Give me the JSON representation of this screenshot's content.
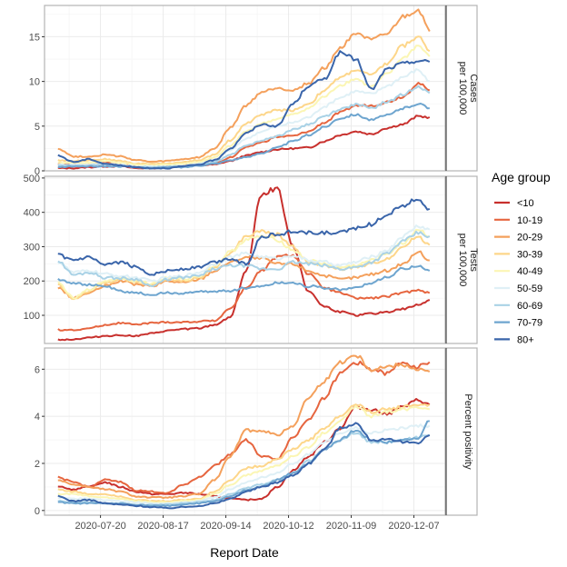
{
  "chart_data": {
    "type": "line",
    "xlabel": "Report Date",
    "x_ticks": [
      "2020-07-20",
      "2020-08-17",
      "2020-09-14",
      "2020-10-12",
      "2020-11-09",
      "2020-12-07"
    ],
    "x_range": [
      "2020-06-25",
      "2020-12-21"
    ],
    "x_dates": [
      "2020-07-01",
      "2020-07-08",
      "2020-07-15",
      "2020-07-22",
      "2020-07-29",
      "2020-08-05",
      "2020-08-12",
      "2020-08-19",
      "2020-08-26",
      "2020-09-02",
      "2020-09-09",
      "2020-09-16",
      "2020-09-23",
      "2020-09-30",
      "2020-10-07",
      "2020-10-14",
      "2020-10-21",
      "2020-10-28",
      "2020-11-04",
      "2020-11-11",
      "2020-11-18",
      "2020-11-25",
      "2020-12-02",
      "2020-12-09",
      "2020-12-14"
    ],
    "grid": true,
    "legend": {
      "title": "Age group",
      "position": "right",
      "entries": [
        "<10",
        "10-19",
        "20-29",
        "30-39",
        "40-49",
        "50-59",
        "60-69",
        "70-79",
        "80+"
      ]
    },
    "colors": {
      "<10": "#c8302d",
      "10-19": "#e6653f",
      "20-29": "#f4a05c",
      "30-39": "#fdd68a",
      "40-49": "#fbf6b4",
      "50-59": "#dff0f6",
      "60-69": "#a9d2e6",
      "70-79": "#6ea5cf",
      "80+": "#3a65aa"
    },
    "panels": [
      {
        "strip": [
          "Cases",
          "per 100,000"
        ],
        "ylim": [
          0,
          18.5
        ],
        "y_ticks": [
          0,
          5,
          10,
          15
        ],
        "series": [
          {
            "name": "<10",
            "values": [
              0.3,
              0.3,
              0.4,
              0.5,
              0.5,
              0.3,
              0.3,
              0.4,
              0.5,
              0.6,
              0.7,
              1.1,
              1.7,
              2.1,
              2.4,
              2.5,
              2.6,
              3.3,
              4.0,
              4.4,
              4.1,
              4.8,
              5.2,
              6.1,
              6.0
            ]
          },
          {
            "name": "10-19",
            "values": [
              0.8,
              0.8,
              0.7,
              0.9,
              0.8,
              0.5,
              0.4,
              0.5,
              0.6,
              0.7,
              0.8,
              1.5,
              2.6,
              3.2,
              3.8,
              3.9,
              4.4,
              5.4,
              6.5,
              7.3,
              7.3,
              7.7,
              8.3,
              9.8,
              9.0
            ]
          },
          {
            "name": "20-29",
            "values": [
              2.5,
              1.6,
              1.6,
              1.8,
              1.6,
              1.2,
              1.0,
              1.1,
              1.3,
              1.5,
              2.5,
              4.8,
              7.3,
              8.8,
              9.3,
              9.0,
              9.8,
              11.5,
              13.7,
              15.5,
              14.6,
              15.3,
              17.2,
              18.0,
              15.6
            ]
          },
          {
            "name": "30-39",
            "values": [
              1.2,
              1.1,
              1.2,
              1.3,
              1.1,
              0.8,
              0.8,
              0.8,
              1.0,
              1.2,
              1.8,
              3.4,
              5.3,
              6.3,
              6.8,
              6.8,
              7.5,
              9.0,
              10.4,
              11.3,
              10.7,
              12.0,
              14.0,
              15.0,
              13.4
            ]
          },
          {
            "name": "40-49",
            "values": [
              0.9,
              0.9,
              0.9,
              1.1,
              0.9,
              0.7,
              0.6,
              0.7,
              0.8,
              1.0,
              1.5,
              2.8,
              4.4,
              5.3,
              5.8,
              6.3,
              7.0,
              8.3,
              9.6,
              10.3,
              9.4,
              10.8,
              12.6,
              14.0,
              12.8
            ]
          },
          {
            "name": "50-59",
            "values": [
              0.7,
              0.7,
              0.7,
              0.8,
              0.7,
              0.5,
              0.5,
              0.5,
              0.6,
              0.8,
              1.2,
              2.3,
              3.6,
              4.4,
              5.0,
              5.4,
              6.0,
              7.2,
              8.2,
              8.9,
              8.6,
              9.5,
              10.5,
              11.3,
              10.0
            ]
          },
          {
            "name": "60-69",
            "values": [
              0.6,
              0.6,
              0.6,
              0.7,
              0.6,
              0.4,
              0.4,
              0.5,
              0.5,
              0.7,
              1.0,
              1.8,
              2.8,
              3.4,
              3.9,
              4.6,
              5.2,
              6.1,
              6.9,
              7.4,
              7.0,
              7.7,
              8.5,
              9.5,
              8.7
            ]
          },
          {
            "name": "70-79",
            "values": [
              0.4,
              0.5,
              0.5,
              0.5,
              0.5,
              0.4,
              0.3,
              0.4,
              0.4,
              0.6,
              0.8,
              1.2,
              1.5,
              2.0,
              2.6,
              3.3,
              4.0,
              4.9,
              5.9,
              6.3,
              5.7,
              6.2,
              7.0,
              7.5,
              7.0
            ]
          },
          {
            "name": "80+",
            "values": [
              1.7,
              1.0,
              1.3,
              0.8,
              0.6,
              0.4,
              0.3,
              0.3,
              0.5,
              0.7,
              1.2,
              2.5,
              4.2,
              5.2,
              5.0,
              7.5,
              9.5,
              10.3,
              13.2,
              12.5,
              9.1,
              11.4,
              12.0,
              12.3,
              12.2
            ]
          }
        ]
      },
      {
        "strip": [
          "Tests",
          "per 100,000"
        ],
        "ylim": [
          18,
          505
        ],
        "y_ticks": [
          100,
          200,
          300,
          400,
          500
        ],
        "series": [
          {
            "name": "<10",
            "values": [
              29,
              30,
              35,
              40,
              42,
              40,
              47,
              55,
              60,
              62,
              72,
              95,
              230,
              455,
              470,
              300,
              170,
              125,
              110,
              100,
              105,
              110,
              118,
              130,
              145
            ]
          },
          {
            "name": "10-19",
            "values": [
              58,
              57,
              62,
              72,
              78,
              73,
              78,
              80,
              80,
              82,
              85,
              120,
              180,
              230,
              270,
              275,
              220,
              180,
              165,
              150,
              150,
              155,
              165,
              175,
              165
            ]
          },
          {
            "name": "20-29",
            "values": [
              180,
              150,
              165,
              185,
              200,
              190,
              185,
              200,
              195,
              205,
              230,
              255,
              270,
              265,
              250,
              250,
              230,
              215,
              205,
              210,
              220,
              230,
              250,
              285,
              260
            ]
          },
          {
            "name": "30-39",
            "values": [
              190,
              148,
              170,
              195,
              205,
              195,
              190,
              205,
              200,
              210,
              240,
              280,
              330,
              345,
              335,
              300,
              255,
              245,
              235,
              240,
              250,
              265,
              300,
              330,
              305
            ]
          },
          {
            "name": "40-49",
            "values": [
              195,
              150,
              175,
              200,
              210,
              200,
              192,
              210,
              205,
              215,
              245,
              285,
              320,
              330,
              320,
              290,
              260,
              250,
              240,
              245,
              260,
              280,
              310,
              350,
              330
            ]
          },
          {
            "name": "50-59",
            "values": [
              255,
              225,
              230,
              220,
              215,
              210,
              200,
              210,
              215,
              225,
              250,
              270,
              280,
              270,
              265,
              275,
              260,
              255,
              245,
              255,
              270,
              290,
              330,
              360,
              350
            ]
          },
          {
            "name": "60-69",
            "values": [
              258,
              218,
              225,
              210,
              208,
              205,
              185,
              205,
              210,
              215,
              235,
              245,
              245,
              235,
              235,
              255,
              250,
              245,
              235,
              240,
              255,
              280,
              315,
              340,
              330
            ]
          },
          {
            "name": "70-79",
            "values": [
              205,
              195,
              188,
              185,
              170,
              165,
              160,
              165,
              165,
              168,
              170,
              172,
              180,
              185,
              195,
              195,
              185,
              180,
              175,
              180,
              195,
              210,
              235,
              245,
              230
            ]
          },
          {
            "name": "80+",
            "values": [
              275,
              260,
              268,
              245,
              255,
              240,
              220,
              230,
              235,
              240,
              255,
              265,
              250,
              330,
              335,
              345,
              340,
              340,
              340,
              355,
              365,
              395,
              420,
              440,
              410
            ]
          }
        ]
      },
      {
        "strip": [
          "Percent positivity"
        ],
        "ylim": [
          -0.2,
          6.9
        ],
        "y_ticks": [
          0,
          2,
          4,
          6
        ],
        "series": [
          {
            "name": "<10",
            "values": [
              1.0,
              0.9,
              1.0,
              1.2,
              1.0,
              0.8,
              0.7,
              0.7,
              0.75,
              0.7,
              0.6,
              0.5,
              0.45,
              0.5,
              1.0,
              1.7,
              2.3,
              2.9,
              3.5,
              4.4,
              4.3,
              4.1,
              4.4,
              4.7,
              4.5
            ]
          },
          {
            "name": "10-19",
            "values": [
              1.4,
              1.2,
              1.0,
              1.3,
              1.2,
              0.85,
              0.8,
              0.75,
              1.1,
              1.4,
              1.9,
              2.4,
              3.0,
              2.3,
              2.2,
              3.1,
              3.9,
              4.8,
              5.8,
              6.3,
              6.0,
              5.8,
              6.3,
              6.1,
              6.3
            ]
          },
          {
            "name": "20-29",
            "values": [
              1.3,
              1.1,
              1.0,
              0.9,
              0.8,
              0.6,
              0.55,
              0.55,
              0.6,
              0.7,
              1.3,
              2.3,
              3.4,
              3.4,
              3.2,
              3.6,
              4.8,
              5.5,
              6.3,
              6.6,
              6.0,
              6.1,
              6.2,
              6.0,
              5.9
            ]
          },
          {
            "name": "30-39",
            "values": [
              0.9,
              0.8,
              0.7,
              0.7,
              0.6,
              0.45,
              0.4,
              0.4,
              0.45,
              0.5,
              0.8,
              1.3,
              1.8,
              1.9,
              2.2,
              2.6,
              3.0,
              3.5,
              4.0,
              4.5,
              4.2,
              4.3,
              4.4,
              4.5,
              4.5
            ]
          },
          {
            "name": "40-49",
            "values": [
              0.7,
              0.7,
              0.6,
              0.55,
              0.5,
              0.4,
              0.35,
              0.35,
              0.4,
              0.45,
              0.7,
              1.1,
              1.5,
              1.7,
              1.9,
              2.3,
              2.7,
              3.3,
              3.8,
              4.4,
              4.0,
              4.2,
              4.3,
              4.4,
              4.3
            ]
          },
          {
            "name": "50-59",
            "values": [
              0.55,
              0.5,
              0.5,
              0.45,
              0.4,
              0.35,
              0.3,
              0.3,
              0.35,
              0.4,
              0.55,
              0.9,
              1.2,
              1.4,
              1.6,
              2.0,
              2.4,
              2.9,
              3.3,
              3.5,
              3.3,
              3.4,
              3.5,
              3.6,
              3.6
            ]
          },
          {
            "name": "60-69",
            "values": [
              0.4,
              0.35,
              0.35,
              0.3,
              0.3,
              0.25,
              0.25,
              0.25,
              0.3,
              0.35,
              0.45,
              0.7,
              0.95,
              1.1,
              1.3,
              1.6,
              2.1,
              2.6,
              3.0,
              3.3,
              2.9,
              2.9,
              3.0,
              3.1,
              3.2
            ]
          },
          {
            "name": "70-79",
            "values": [
              0.35,
              0.3,
              0.3,
              0.3,
              0.3,
              0.25,
              0.2,
              0.2,
              0.25,
              0.3,
              0.4,
              0.6,
              0.85,
              1.0,
              1.3,
              1.6,
              2.0,
              2.6,
              3.0,
              3.4,
              3.0,
              2.9,
              3.0,
              3.1,
              3.8
            ]
          },
          {
            "name": "80+",
            "values": [
              0.6,
              0.4,
              0.45,
              0.3,
              0.25,
              0.2,
              0.15,
              0.1,
              0.15,
              0.2,
              0.3,
              0.5,
              0.8,
              1.0,
              1.2,
              1.5,
              2.0,
              2.6,
              3.5,
              3.7,
              3.0,
              3.0,
              2.9,
              2.9,
              3.2
            ]
          }
        ]
      }
    ]
  }
}
